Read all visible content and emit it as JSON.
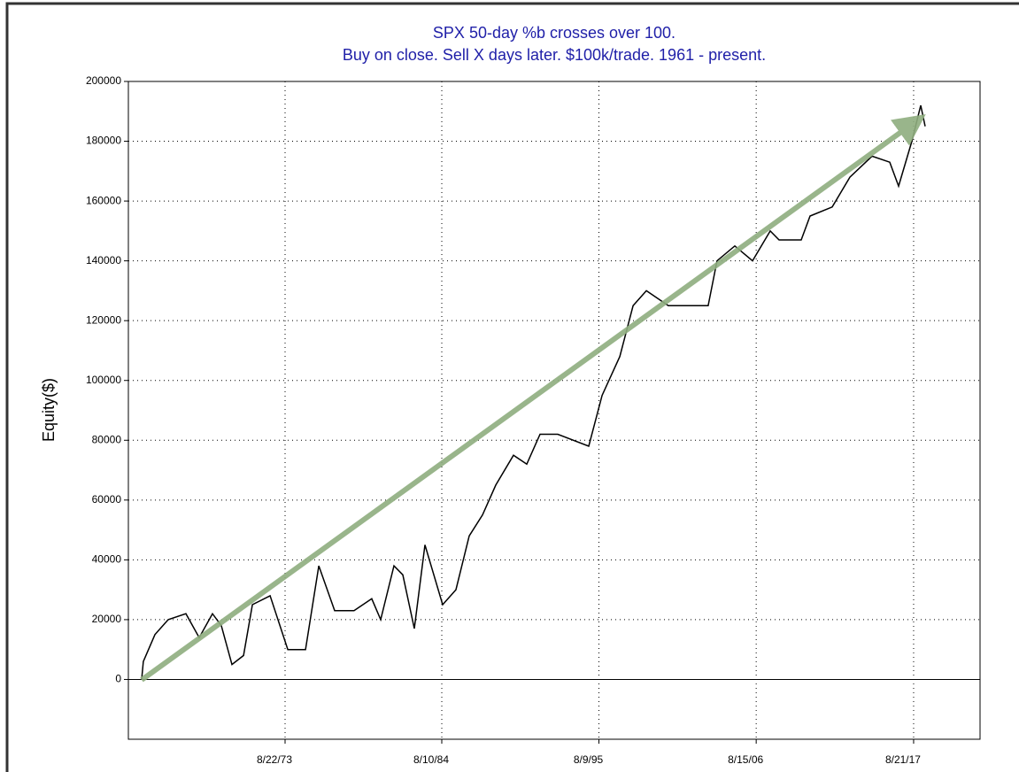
{
  "chart_data": {
    "type": "line",
    "title": "SPX 50-day %b crosses over 100.",
    "subtitle": "Buy on close. Sell X days later. $100k/trade. 1961 - present.",
    "y_label": "Equity($)",
    "x": [
      1963.6,
      1963.72,
      1964.53,
      1965.46,
      1966.7,
      1967.63,
      1968.56,
      1969.18,
      1969.92,
      1970.73,
      1971.35,
      1972.59,
      1973.83,
      1975.07,
      1976.0,
      1977.11,
      1978.47,
      1979.71,
      1980.33,
      1981.26,
      1981.88,
      1982.69,
      1983.43,
      1984.67,
      1985.6,
      1986.53,
      1987.46,
      1988.39,
      1989.63,
      1990.56,
      1991.49,
      1992.73,
      1994.9,
      1995.83,
      1997.07,
      1998.0,
      1998.93,
      2000.47,
      2003.26,
      2003.88,
      2005.12,
      2006.36,
      2007.6,
      2008.22,
      2009.77,
      2010.39,
      2011.94,
      2013.18,
      2014.73,
      2015.97,
      2016.59,
      2017.52,
      2018.14,
      2018.45
    ],
    "series": [
      {
        "name": "Equity",
        "color": "#000000",
        "values": [
          0,
          6000,
          15000,
          20000,
          22000,
          14000,
          22000,
          18000,
          5000,
          8000,
          25000,
          28000,
          10000,
          10000,
          38000,
          23000,
          23000,
          27000,
          20000,
          38000,
          35000,
          17000,
          45000,
          25000,
          30000,
          48000,
          55000,
          65000,
          75000,
          72000,
          82000,
          82000,
          78000,
          95000,
          108000,
          125000,
          130000,
          125000,
          125000,
          140000,
          145000,
          140000,
          150000,
          147000,
          147000,
          155000,
          158000,
          168000,
          175000,
          173000,
          165000,
          180000,
          192000,
          185000
        ]
      }
    ],
    "xlim": [
      1962.67,
      2022.29
    ],
    "xticks": [
      {
        "value": 1973.64,
        "label": "8/22/73"
      },
      {
        "value": 1984.61,
        "label": "8/10/84"
      },
      {
        "value": 1995.61,
        "label": "8/9/95"
      },
      {
        "value": 2006.62,
        "label": "8/15/06"
      },
      {
        "value": 2017.64,
        "label": "8/21/17"
      }
    ],
    "ylim": [
      -20000,
      200000
    ],
    "yticks": [
      0,
      20000,
      40000,
      60000,
      80000,
      100000,
      120000,
      140000,
      160000,
      180000,
      200000
    ],
    "grid": true
  }
}
